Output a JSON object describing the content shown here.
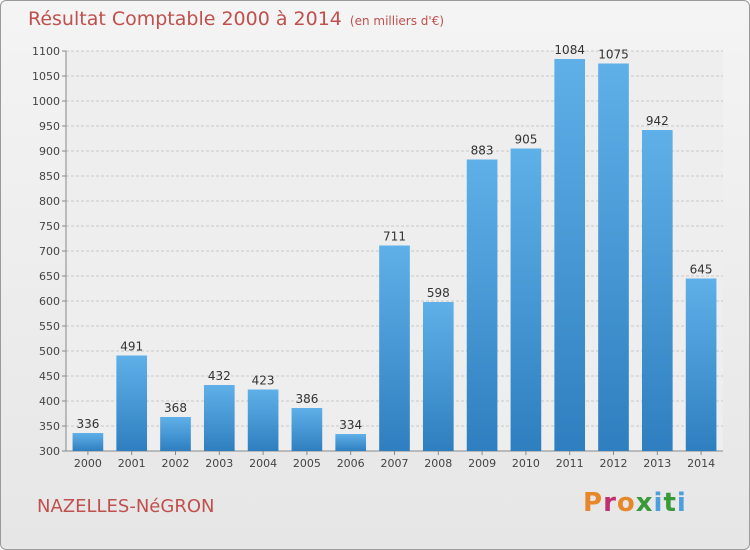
{
  "chart_data": {
    "type": "bar",
    "title": "Résultat Comptable 2000 à 2014",
    "subtitle": "(en milliers d'€)",
    "categories": [
      "2000",
      "2001",
      "2002",
      "2003",
      "2004",
      "2005",
      "2006",
      "2007",
      "2008",
      "2009",
      "2010",
      "2011",
      "2012",
      "2013",
      "2014"
    ],
    "values": [
      336,
      491,
      368,
      432,
      423,
      386,
      334,
      711,
      598,
      883,
      905,
      1084,
      1075,
      942,
      645
    ],
    "ylim": [
      300,
      1100
    ],
    "yticks": [
      300,
      350,
      400,
      450,
      500,
      550,
      600,
      650,
      700,
      750,
      800,
      850,
      900,
      950,
      1000,
      1050,
      1100
    ],
    "grid": true,
    "bar_color": "#4aa0dd"
  },
  "footer": {
    "place": "NAZELLES-NéGRON",
    "brand": "Proxiti"
  },
  "brand_colors": [
    "#e8862a",
    "#c03070",
    "#4aa0dd",
    "#3a9a3a"
  ]
}
